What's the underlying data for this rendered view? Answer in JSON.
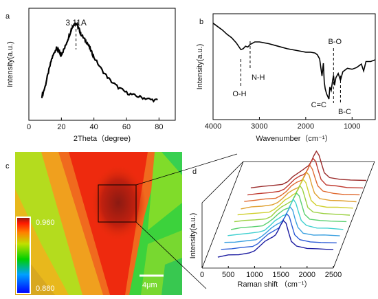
{
  "panels": {
    "a": {
      "label": "a"
    },
    "b": {
      "label": "b"
    },
    "c": {
      "label": "c"
    },
    "d": {
      "label": "d"
    }
  },
  "colors": {
    "line": "#000000",
    "map_peak": "#8b1a12",
    "scalebar": "#ffffff"
  },
  "chart_data": [
    {
      "id": "a",
      "type": "line",
      "title": "",
      "xlabel": "2Theta（degree)",
      "ylabel": "Intensity(a.u.)",
      "xlim": [
        0,
        90
      ],
      "xticks": [
        0,
        20,
        40,
        60,
        80
      ],
      "y_ticks_shown": false,
      "annotation": "3.11A",
      "annotation_x": 29,
      "series": [
        {
          "x": [
            8,
            10,
            12,
            14,
            16,
            17,
            18,
            19,
            20,
            22,
            24,
            26,
            27,
            28,
            29,
            30,
            31,
            32,
            34,
            36,
            38,
            40,
            45,
            50,
            55,
            60,
            65,
            70,
            75,
            80
          ],
          "y": [
            18,
            28,
            42,
            55,
            63,
            66,
            64,
            61,
            60,
            66,
            75,
            84,
            88,
            90,
            91,
            88,
            84,
            80,
            75,
            71,
            64,
            57,
            44,
            34,
            27,
            22,
            19,
            17,
            15,
            14
          ]
        }
      ]
    },
    {
      "id": "b",
      "type": "line",
      "title": "",
      "xlabel": "Wavenumber（cm⁻¹）",
      "ylabel": "Intensity(a.u.)",
      "xlim": [
        4000,
        500
      ],
      "xticks": [
        4000,
        3000,
        2000,
        1000
      ],
      "y_ticks_shown": false,
      "annotations": [
        {
          "text": "O-H",
          "x": 3400
        },
        {
          "text": "N-H",
          "x": 3200
        },
        {
          "text": "C=C",
          "x": 1600
        },
        {
          "text": "B-O",
          "x": 1400
        },
        {
          "text": "B-C",
          "x": 1250
        }
      ],
      "series": [
        {
          "x": [
            4000,
            3900,
            3800,
            3700,
            3600,
            3500,
            3400,
            3350,
            3300,
            3250,
            3200,
            3100,
            3000,
            2800,
            2600,
            2400,
            2200,
            2000,
            1900,
            1800,
            1750,
            1700,
            1650,
            1620,
            1600,
            1580,
            1550,
            1500,
            1480,
            1450,
            1420,
            1400,
            1380,
            1350,
            1300,
            1250,
            1200,
            1100,
            1000,
            900,
            800,
            750,
            700,
            600,
            500
          ],
          "y": [
            97,
            93,
            89,
            84,
            80,
            74,
            66,
            67,
            70,
            69,
            72,
            75,
            75,
            73,
            70,
            67,
            65,
            63,
            63,
            62,
            60,
            55,
            35,
            50,
            28,
            20,
            14,
            8,
            22,
            18,
            30,
            36,
            24,
            33,
            38,
            30,
            40,
            44,
            43,
            45,
            49,
            41,
            52,
            52,
            54
          ]
        }
      ]
    },
    {
      "id": "c",
      "type": "heatmap",
      "title": "",
      "colorbar": {
        "max_label": "0.960",
        "min_label": "0.880",
        "min": 0.88,
        "max": 0.96
      },
      "scalebar_label": "4μm",
      "description_of_field": "Raman intensity map, high values in a central V-shaped band"
    },
    {
      "id": "d",
      "type": "line",
      "title": "",
      "xlabel": "Raman shift （cm⁻¹）",
      "ylabel": "Intensity(a.u.)",
      "xlim": [
        0,
        2500
      ],
      "xticks": [
        0,
        500,
        1000,
        1500,
        2000,
        2500
      ],
      "y_ticks_shown": false,
      "stacked_3d": true,
      "series_colors": [
        "#1a1aa0",
        "#2b5bd6",
        "#3aa0e0",
        "#3fd0d0",
        "#5ad070",
        "#9ad040",
        "#d0d030",
        "#e0a030",
        "#e06a30",
        "#c03a30",
        "#9a2a2a"
      ],
      "series_shape_x": [
        300,
        500,
        700,
        900,
        1000,
        1100,
        1200,
        1300,
        1350,
        1400,
        1450,
        1500,
        1550,
        1600,
        1650,
        1700,
        1800,
        2000,
        2200,
        2500
      ],
      "series_shape_y": [
        8,
        10,
        12,
        14,
        18,
        26,
        34,
        40,
        42,
        45,
        52,
        62,
        70,
        64,
        48,
        34,
        25,
        22,
        21,
        20
      ]
    }
  ]
}
